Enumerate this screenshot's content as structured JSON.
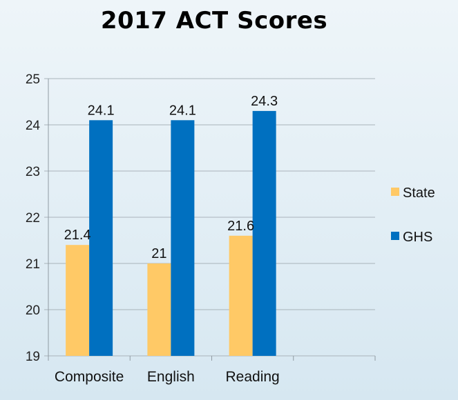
{
  "chart_data": {
    "type": "bar",
    "title": "2017 ACT Scores",
    "xlabel": "",
    "ylabel": "",
    "categories": [
      "Composite",
      "English",
      "Reading"
    ],
    "series": [
      {
        "name": "State",
        "values": [
          21.4,
          21,
          21.6
        ],
        "labels": [
          "21.4",
          "21",
          "21.6"
        ],
        "color": "#ffc966"
      },
      {
        "name": "GHS",
        "values": [
          24.1,
          24.1,
          24.3
        ],
        "labels": [
          "24.1",
          "24.1",
          "24.3"
        ],
        "color": "#0070c0"
      }
    ],
    "ylim": [
      19,
      25
    ],
    "yticks": [
      "19",
      "20",
      "21",
      "22",
      "23",
      "24",
      "25"
    ],
    "grid": true,
    "legend": "right"
  }
}
